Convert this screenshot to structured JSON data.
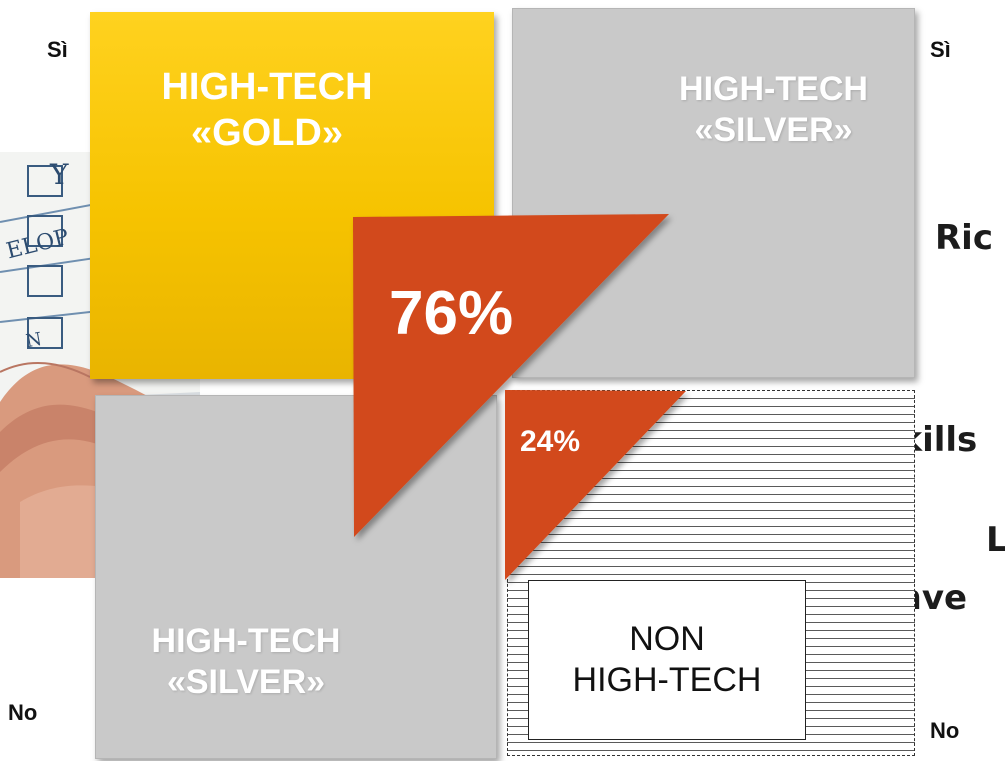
{
  "axis": {
    "left_top": "Sì",
    "left_bottom": "No",
    "right_top": "Sì",
    "right_bottom": "No"
  },
  "quadrants": {
    "top_left": {
      "line1": "HIGH-TECH",
      "line2": "«GOLD»",
      "color": "#f6c300"
    },
    "top_right": {
      "line1": "HIGH-TECH",
      "line2": "«SILVER»",
      "color": "#c9c9c9"
    },
    "bottom_left": {
      "line1": "HIGH-TECH",
      "line2": "«SILVER»",
      "color": "#c9c9c9"
    },
    "bottom_right": {
      "line1": "NON",
      "line2": "HIGH-TECH"
    }
  },
  "percentages": {
    "large": "76%",
    "small": "24%",
    "color": "#d2491a"
  },
  "right_partial_text": {
    "line1": "Ric",
    "line2": "Skills",
    "line3": "L",
    "line4": "Inve"
  },
  "photo": {
    "words": [
      "Y",
      "ELOP",
      "N"
    ]
  }
}
